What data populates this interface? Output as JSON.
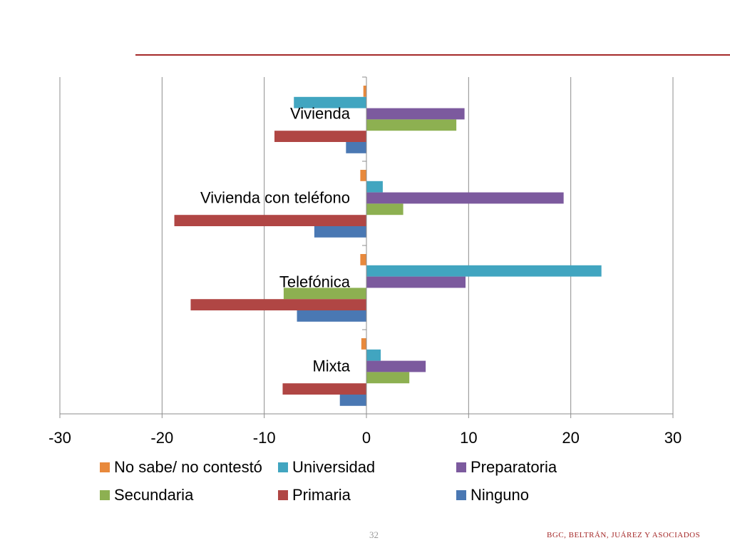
{
  "chart_data": {
    "type": "bar",
    "orientation": "horizontal",
    "categories": [
      "Vivienda",
      "Vivienda con teléfono",
      "Telefónica",
      "Mixta"
    ],
    "series": [
      {
        "name": "No sabe/ no contestó",
        "color": "#e8893c",
        "values": [
          -0.3,
          -0.6,
          -0.6,
          -0.5
        ]
      },
      {
        "name": "Universidad",
        "color": "#41a5c0",
        "values": [
          -7.1,
          1.6,
          23.0,
          1.4
        ]
      },
      {
        "name": "Preparatoria",
        "color": "#7c5a9e",
        "values": [
          9.6,
          19.3,
          9.7,
          5.8
        ]
      },
      {
        "name": "Secundaria",
        "color": "#8db051",
        "values": [
          8.8,
          3.6,
          -8.1,
          4.2
        ]
      },
      {
        "name": "Primaria",
        "color": "#b04644",
        "values": [
          -9.0,
          -18.8,
          -17.2,
          -8.2
        ]
      },
      {
        "name": "Ninguno",
        "color": "#4a78b3",
        "values": [
          -2.0,
          -5.1,
          -6.8,
          -2.6
        ]
      }
    ],
    "xlim": [
      -30,
      30
    ],
    "xticks": [
      -30,
      -20,
      -10,
      0,
      10,
      20,
      30
    ],
    "tick_labels": [
      "-30",
      "-20",
      "-10",
      "0",
      "10",
      "20",
      "30"
    ],
    "grid": true,
    "legend_position": "bottom"
  },
  "footer": {
    "page_number": "32",
    "organization": "BGC, BELTRÁN, JUÁREZ Y ASOCIADOS"
  }
}
